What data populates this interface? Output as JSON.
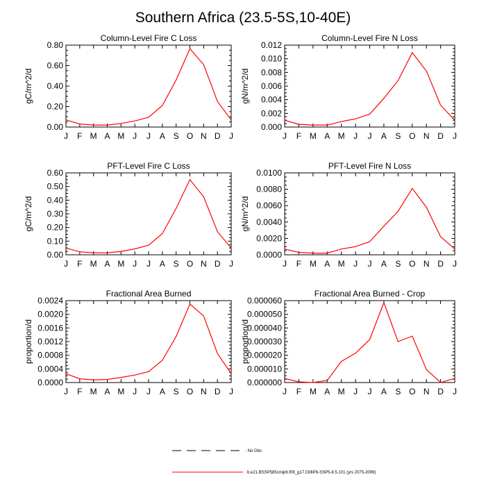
{
  "figure": {
    "title": "Southern Africa (23.5-5S,10-40E)",
    "line_color": "#ff0000",
    "legend": {
      "entries": [
        {
          "label": "No Obs",
          "style": "dashed",
          "color": "#000000"
        },
        {
          "label": "b.e21.BSSP585cmip6.f09_g17.CMIP6-SSP5-8.5.101 (yrs 2075-2099)",
          "style": "solid",
          "color": "#ff0000"
        }
      ]
    }
  },
  "chart_data": [
    {
      "type": "line",
      "title": "Column-Level Fire C Loss",
      "ylabel": "gC/m^2/d",
      "categories": [
        "J",
        "F",
        "M",
        "A",
        "M",
        "J",
        "J",
        "A",
        "S",
        "O",
        "N",
        "D",
        "J"
      ],
      "ylim": [
        0,
        0.8
      ],
      "yticks": [
        "0.00",
        "0.20",
        "0.40",
        "0.60",
        "0.80"
      ],
      "series": [
        {
          "values": [
            0.07,
            0.03,
            0.02,
            0.02,
            0.035,
            0.06,
            0.095,
            0.21,
            0.46,
            0.765,
            0.61,
            0.25,
            0.07
          ]
        }
      ]
    },
    {
      "type": "line",
      "title": "Column-Level Fire N Loss",
      "ylabel": "gN/m^2/d",
      "categories": [
        "J",
        "F",
        "M",
        "A",
        "M",
        "J",
        "J",
        "A",
        "S",
        "O",
        "N",
        "D",
        "J"
      ],
      "ylim": [
        0,
        0.012
      ],
      "yticks": [
        "0.000",
        "0.002",
        "0.004",
        "0.006",
        "0.008",
        "0.010",
        "0.012"
      ],
      "series": [
        {
          "values": [
            0.001,
            0.0004,
            0.0003,
            0.0003,
            0.0008,
            0.0012,
            0.0019,
            0.0042,
            0.0068,
            0.0109,
            0.0082,
            0.0032,
            0.001
          ]
        }
      ]
    },
    {
      "type": "line",
      "title": "PFT-Level Fire C Loss",
      "ylabel": "gC/m^2/d",
      "categories": [
        "J",
        "F",
        "M",
        "A",
        "M",
        "J",
        "J",
        "A",
        "S",
        "O",
        "N",
        "D",
        "J"
      ],
      "ylim": [
        0,
        0.6
      ],
      "yticks": [
        "0.00",
        "0.10",
        "0.20",
        "0.30",
        "0.40",
        "0.50",
        "0.60"
      ],
      "series": [
        {
          "values": [
            0.05,
            0.022,
            0.015,
            0.015,
            0.025,
            0.043,
            0.07,
            0.155,
            0.34,
            0.55,
            0.425,
            0.17,
            0.05
          ]
        }
      ]
    },
    {
      "type": "line",
      "title": "PFT-Level Fire N Loss",
      "ylabel": "gN/m^2/d",
      "categories": [
        "J",
        "F",
        "M",
        "A",
        "M",
        "J",
        "J",
        "A",
        "S",
        "O",
        "N",
        "D",
        "J"
      ],
      "ylim": [
        0,
        0.01
      ],
      "yticks": [
        "0.0000",
        "0.0020",
        "0.0040",
        "0.0060",
        "0.0080",
        "0.0100"
      ],
      "series": [
        {
          "values": [
            0.0007,
            0.0003,
            0.0002,
            0.0002,
            0.0007,
            0.001,
            0.0016,
            0.0035,
            0.0053,
            0.0081,
            0.0058,
            0.0022,
            0.0007
          ]
        }
      ]
    },
    {
      "type": "line",
      "title": "Fractional Area Burned",
      "ylabel": "proportion/d",
      "categories": [
        "J",
        "F",
        "M",
        "A",
        "M",
        "J",
        "J",
        "A",
        "S",
        "O",
        "N",
        "D",
        "J"
      ],
      "ylim": [
        0,
        0.0024
      ],
      "yticks": [
        "0.0000",
        "0.0004",
        "0.0008",
        "0.0012",
        "0.0016",
        "0.0020",
        "0.0024"
      ],
      "series": [
        {
          "values": [
            0.00026,
            0.00011,
            8e-05,
            9e-05,
            0.00015,
            0.00022,
            0.00032,
            0.00065,
            0.00135,
            0.0023,
            0.00195,
            0.00085,
            0.00026
          ]
        }
      ]
    },
    {
      "type": "line",
      "title": "Fractional Area Burned - Crop",
      "ylabel": "proportion/d",
      "categories": [
        "J",
        "F",
        "M",
        "A",
        "M",
        "J",
        "J",
        "A",
        "S",
        "O",
        "N",
        "D",
        "J"
      ],
      "ylim": [
        0,
        6e-05
      ],
      "yticks": [
        "0.000000",
        "0.000010",
        "0.000020",
        "0.000030",
        "0.000040",
        "0.000050",
        "0.000060"
      ],
      "series": [
        {
          "values": [
            3e-06,
            5e-07,
            0.0,
            1.5e-06,
            1.55e-05,
            2.15e-05,
            3.15e-05,
            5.85e-05,
            3e-05,
            3.4e-05,
            9.5e-06,
            0.0,
            3e-06
          ]
        }
      ]
    }
  ]
}
